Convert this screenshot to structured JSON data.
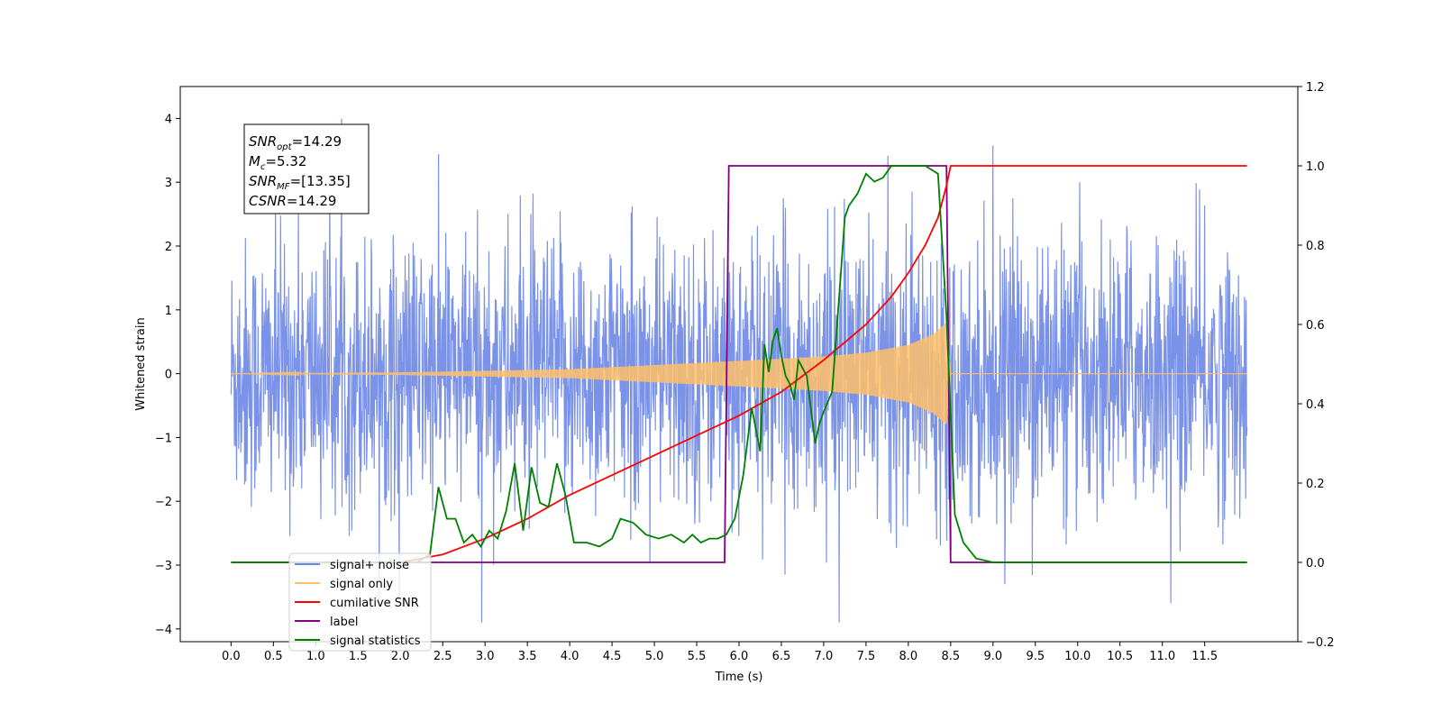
{
  "chart_data": {
    "type": "line",
    "xlabel": "Time (s)",
    "ylabel": "Whitened strain",
    "xlim": [
      -0.6,
      12.6
    ],
    "ylim": [
      -4.2,
      4.5
    ],
    "y2lim": [
      -0.2,
      1.2
    ],
    "x_ticks": [
      "0.0",
      "0.5",
      "1.0",
      "1.5",
      "2.0",
      "2.5",
      "3.0",
      "3.5",
      "4.0",
      "4.5",
      "5.0",
      "5.5",
      "6.0",
      "6.5",
      "7.0",
      "7.5",
      "8.0",
      "8.5",
      "9.0",
      "9.5",
      "10.0",
      "10.5",
      "11.0",
      "11.5"
    ],
    "y_ticks": [
      -4,
      -3,
      -2,
      -1,
      0,
      1,
      2,
      3,
      4
    ],
    "y_tick_labels": [
      "−4",
      "−3",
      "−2",
      "−1",
      "0",
      "1",
      "2",
      "3",
      "4"
    ],
    "y2_ticks": [
      "−0.2",
      "0.0",
      "0.2",
      "0.4",
      "0.6",
      "0.8",
      "1.0",
      "1.2"
    ],
    "legend_location": "lower-left",
    "colors": {
      "signal_noise": "#6b86e4",
      "signal_only": "#ffbf69",
      "cumulative_snr": "#ff0000",
      "label": "#800080",
      "signal_statistics": "#008000"
    },
    "series": [
      {
        "name": "signal+ noise",
        "axis": "left",
        "description_range": [
          -3.9,
          4.1
        ],
        "x_range": [
          0.0,
          12.0
        ]
      },
      {
        "name": "signal only",
        "axis": "left",
        "envelope": {
          "x": [
            0.0,
            2.0,
            4.0,
            6.0,
            7.0,
            7.5,
            8.0,
            8.3,
            8.45,
            8.5,
            12.0
          ],
          "amp": [
            0.0,
            0.02,
            0.07,
            0.2,
            0.27,
            0.33,
            0.45,
            0.62,
            0.8,
            0.0,
            0.0
          ]
        }
      },
      {
        "name": "cumilative SNR",
        "axis": "right",
        "x": [
          2.0,
          2.5,
          3.0,
          3.5,
          4.0,
          4.5,
          5.0,
          5.5,
          6.0,
          6.5,
          7.0,
          7.5,
          7.8,
          8.0,
          8.2,
          8.35,
          8.45,
          8.5,
          12.0
        ],
        "y": [
          0.0,
          0.02,
          0.06,
          0.11,
          0.17,
          0.22,
          0.27,
          0.32,
          0.37,
          0.43,
          0.51,
          0.6,
          0.67,
          0.73,
          0.8,
          0.87,
          0.95,
          1.0,
          1.0
        ]
      },
      {
        "name": "label",
        "axis": "right",
        "x": [
          0.0,
          5.83,
          5.88,
          8.45,
          8.5,
          12.0
        ],
        "y": [
          0.0,
          0.0,
          1.0,
          1.0,
          0.0,
          0.0
        ]
      },
      {
        "name": "signal statistics",
        "axis": "right",
        "x": [
          0.0,
          2.2,
          2.35,
          2.45,
          2.55,
          2.65,
          2.75,
          2.85,
          2.95,
          3.05,
          3.15,
          3.25,
          3.35,
          3.45,
          3.55,
          3.65,
          3.75,
          3.85,
          3.95,
          4.05,
          4.2,
          4.35,
          4.5,
          4.6,
          4.75,
          4.9,
          5.05,
          5.2,
          5.35,
          5.45,
          5.55,
          5.65,
          5.75,
          5.85,
          5.95,
          6.05,
          6.15,
          6.25,
          6.3,
          6.35,
          6.4,
          6.45,
          6.5,
          6.55,
          6.6,
          6.65,
          6.7,
          6.8,
          6.9,
          6.95,
          7.0,
          7.1,
          7.2,
          7.25,
          7.3,
          7.4,
          7.5,
          7.6,
          7.7,
          7.8,
          7.9,
          8.0,
          8.2,
          8.35,
          8.45,
          8.55,
          8.65,
          8.8,
          9.0,
          12.0
        ],
        "y": [
          0.0,
          0.0,
          0.02,
          0.19,
          0.11,
          0.11,
          0.05,
          0.07,
          0.04,
          0.08,
          0.06,
          0.13,
          0.25,
          0.08,
          0.24,
          0.15,
          0.14,
          0.25,
          0.17,
          0.05,
          0.05,
          0.04,
          0.06,
          0.11,
          0.1,
          0.07,
          0.06,
          0.07,
          0.05,
          0.07,
          0.05,
          0.06,
          0.06,
          0.07,
          0.11,
          0.22,
          0.39,
          0.28,
          0.55,
          0.48,
          0.56,
          0.59,
          0.52,
          0.47,
          0.45,
          0.41,
          0.51,
          0.47,
          0.3,
          0.35,
          0.38,
          0.43,
          0.72,
          0.87,
          0.9,
          0.93,
          0.98,
          0.96,
          0.97,
          1.0,
          1.0,
          1.0,
          1.0,
          0.98,
          0.62,
          0.12,
          0.05,
          0.01,
          0.0,
          0.0
        ]
      }
    ],
    "annotation": [
      {
        "base": "SNR",
        "sub": "opt",
        "value": "=14.29"
      },
      {
        "base": "M",
        "sub": "c",
        "value": "=5.32"
      },
      {
        "base": "SNR",
        "sub": "MF",
        "value": "=[13.35]"
      },
      {
        "base": "CSNR",
        "sub": "",
        "value": "=14.29"
      }
    ],
    "legend": [
      {
        "label": "signal+ noise",
        "key": "signal_noise"
      },
      {
        "label": "signal only",
        "key": "signal_only"
      },
      {
        "label": "cumilative SNR",
        "key": "cumulative_snr"
      },
      {
        "label": "label",
        "key": "label"
      },
      {
        "label": "signal statistics",
        "key": "signal_statistics"
      }
    ]
  }
}
